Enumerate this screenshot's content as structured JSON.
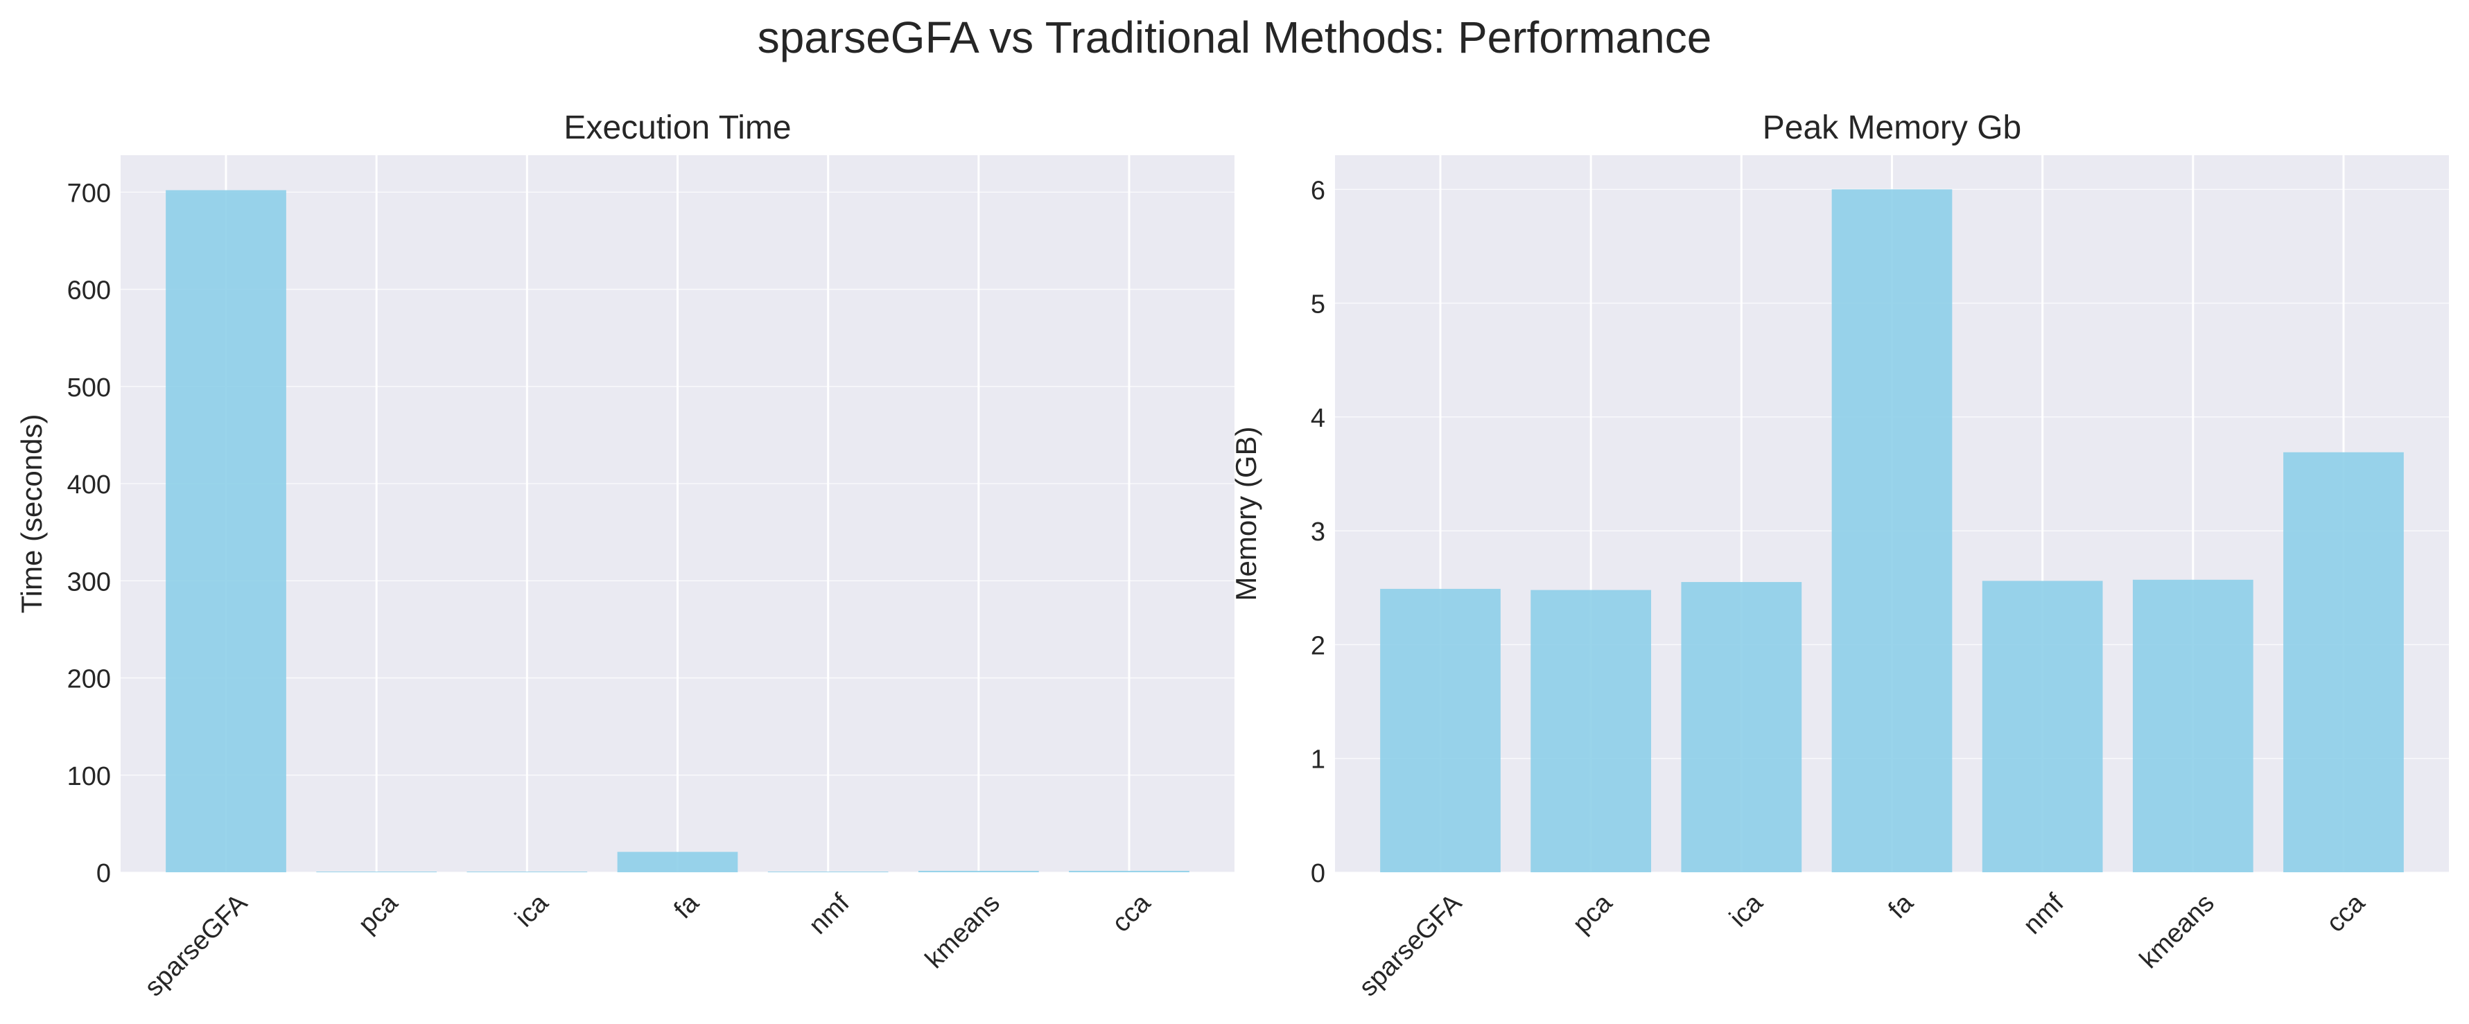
{
  "figure": {
    "title": "sparseGFA vs Traditional Methods: Performance"
  },
  "colors": {
    "bar": "#8ecfe9",
    "plot_bg": "#eaeaf2",
    "grid": "#ffffff",
    "text": "#262626"
  },
  "chart_data": [
    {
      "type": "bar",
      "title": "Execution Time",
      "xlabel": "",
      "ylabel": "Time (seconds)",
      "categories": [
        "sparseGFA",
        "pca",
        "ica",
        "fa",
        "nmf",
        "kmeans",
        "cca"
      ],
      "values": [
        702,
        0.2,
        0.3,
        21,
        0.5,
        1.5,
        1.5
      ],
      "ylim": [
        0,
        738
      ],
      "yticks": [
        0,
        100,
        200,
        300,
        400,
        500,
        600,
        700
      ],
      "grid": true,
      "tick_rotation": 45
    },
    {
      "type": "bar",
      "title": "Peak Memory Gb",
      "xlabel": "",
      "ylabel": "Memory (GB)",
      "categories": [
        "sparseGFA",
        "pca",
        "ica",
        "fa",
        "nmf",
        "kmeans",
        "cca"
      ],
      "values": [
        2.49,
        2.48,
        2.55,
        6.0,
        2.56,
        2.57,
        3.69
      ],
      "ylim": [
        0,
        6.3
      ],
      "yticks": [
        0,
        1,
        2,
        3,
        4,
        5,
        6
      ],
      "grid": true,
      "tick_rotation": 45
    }
  ]
}
